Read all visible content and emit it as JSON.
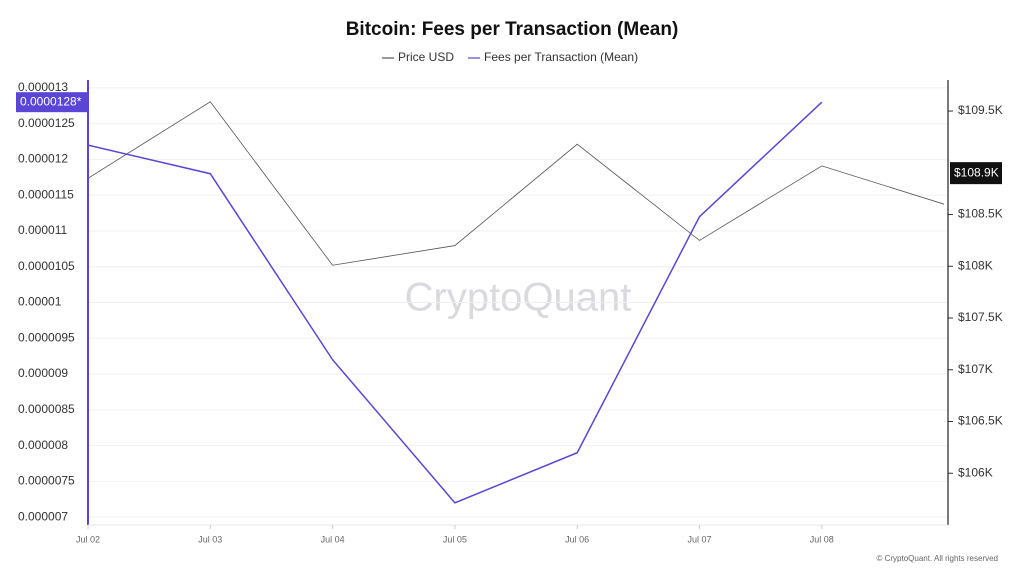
{
  "chart_data": {
    "type": "line",
    "title": "Bitcoin: Fees per Transaction (Mean)",
    "watermark": "CryptoQuant",
    "footer": "© CryptoQuant. All rights reserved",
    "categories": [
      "Jul 02",
      "Jul 03",
      "Jul 04",
      "Jul 05",
      "Jul 06",
      "Jul 07",
      "Jul 08",
      null
    ],
    "series": [
      {
        "name": "Price USD",
        "color": "#555555",
        "axis": "y2",
        "values": [
          108850,
          109590,
          108010,
          108200,
          109180,
          108250,
          108970,
          108600
        ]
      },
      {
        "name": "Fees per Transaction (Mean)",
        "color": "#5b45d6",
        "axis": "y",
        "values": [
          1.22e-05,
          1.18e-05,
          9.2e-06,
          7.2e-06,
          7.9e-06,
          1.12e-05,
          1.28e-05,
          null
        ]
      }
    ],
    "ylim": [
      6.89e-06,
      1.311e-05
    ],
    "yticks": [
      7e-06,
      7.5e-06,
      8e-06,
      8.5e-06,
      9e-06,
      9.5e-06,
      1e-05,
      1.05e-05,
      1.1e-05,
      1.15e-05,
      1.2e-05,
      1.25e-05,
      1.3e-05
    ],
    "y2lim": [
      105500,
      109800
    ],
    "y2ticks": [
      {
        "value": 106000,
        "label": "$106K"
      },
      {
        "value": 106500,
        "label": "$106.5K"
      },
      {
        "value": 107000,
        "label": "$107K"
      },
      {
        "value": 107500,
        "label": "$107.5K"
      },
      {
        "value": 108000,
        "label": "$108K"
      },
      {
        "value": 108500,
        "label": "$108.5K"
      },
      {
        "value": 109500,
        "label": "$109.5K"
      }
    ],
    "y_marker": {
      "value": 1.28e-05,
      "label": "0.0000128*"
    },
    "y2_marker": {
      "value": 108900,
      "label": "$108.9K"
    },
    "grid": true
  }
}
